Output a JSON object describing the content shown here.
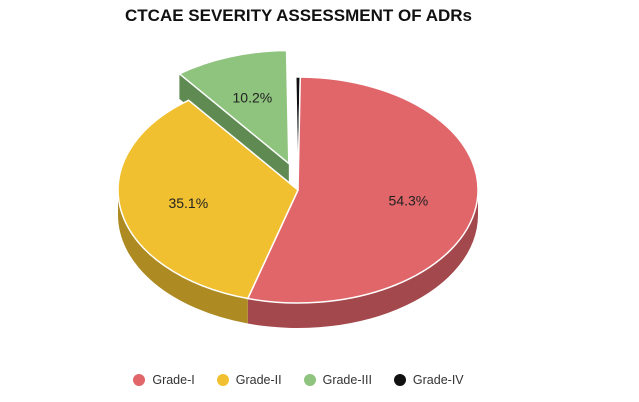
{
  "chart_data": {
    "type": "pie",
    "title": "CTCAE SEVERITY ASSESSMENT OF ADRs",
    "categories": [
      "Grade-I",
      "Grade-II",
      "Grade-III",
      "Grade-IV"
    ],
    "values": [
      54.3,
      35.1,
      10.2,
      0.4
    ],
    "labels": [
      "54.3%",
      "35.1%",
      "10.2%",
      ""
    ],
    "colors": [
      "#e0666a",
      "#f0c030",
      "#8fc47e",
      "#111111"
    ],
    "side_colors": [
      "#a3484c",
      "#ad8a22",
      "#5f8a52",
      "#000000"
    ],
    "exploded": "Grade-III",
    "legend_position": "bottom",
    "style": "3d"
  }
}
